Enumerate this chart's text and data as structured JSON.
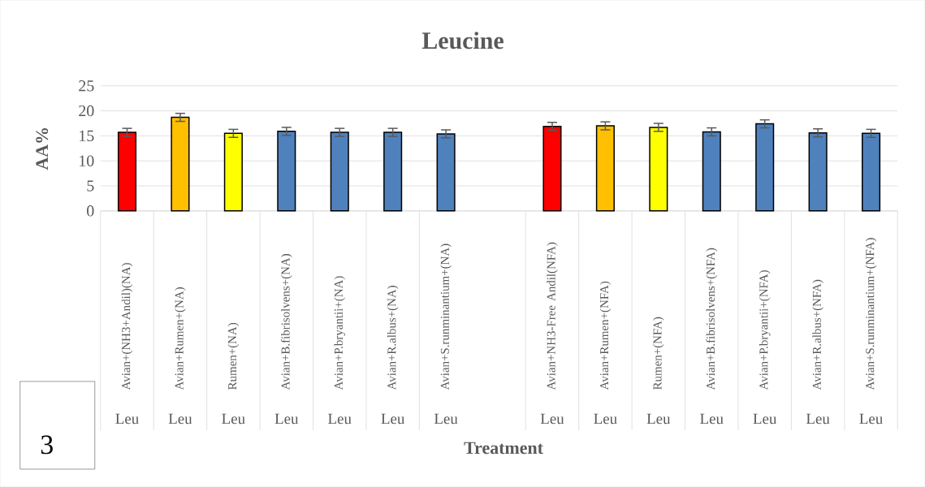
{
  "chart_data": {
    "type": "bar",
    "title": "Leucine",
    "xlabel": "Treatment",
    "ylabel": "AA%",
    "categories": [
      "Avian+(NH3+Andil)(NA)",
      "Avian+Rumen+(NA)",
      "Rumen+(NA)",
      "Avian+B.fibrisolvens+(NA)",
      "Avian+P.bryantii+(NA)",
      "Avian+R.albus+(NA)",
      "Avian+S.runminantium+(NA)",
      null,
      "Avian+NH3-Free Andil(NFA)",
      "Avian+Rumen+(NFA)",
      "Rumen+(NFA)",
      "Avian+B.fibrisolvens+(NFA)",
      "Avian+P.bryantii+(NFA)",
      "Avian+R.albus+(NFA)",
      "Avian+S.runminantium+(NFA)"
    ],
    "values": [
      15.7,
      18.7,
      15.5,
      15.9,
      15.7,
      15.7,
      15.4,
      null,
      16.9,
      17.0,
      16.7,
      15.8,
      17.4,
      15.6,
      15.5
    ],
    "errors": [
      0.8,
      0.8,
      0.8,
      0.8,
      0.8,
      0.8,
      0.8,
      null,
      0.8,
      0.8,
      0.8,
      0.8,
      0.8,
      0.8,
      0.8
    ],
    "colors": [
      "#ff0000",
      "#ffc000",
      "#ffff00",
      "#4f81bd",
      "#4f81bd",
      "#4f81bd",
      "#4f81bd",
      null,
      "#ff0000",
      "#ffc000",
      "#ffff00",
      "#4f81bd",
      "#4f81bd",
      "#4f81bd",
      "#4f81bd"
    ],
    "ylim": [
      0,
      25
    ],
    "yticks": [
      0,
      5,
      10,
      15,
      20,
      25
    ],
    "grid": "y",
    "annotations": [
      "3",
      "Leu",
      "Leu",
      "Leu",
      "Leu",
      "Leu",
      "Leu",
      "Leu",
      "Leu",
      "Leu",
      "Leu",
      "Leu",
      "Leu",
      "Leu",
      "Leu"
    ]
  }
}
